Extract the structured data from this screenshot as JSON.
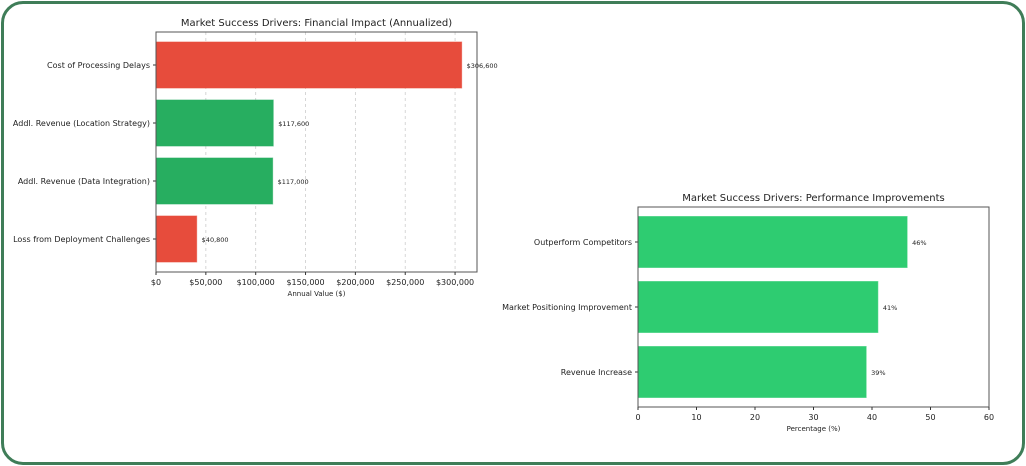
{
  "chart_data": [
    {
      "type": "bar",
      "orientation": "horizontal",
      "title": "Market Success Drivers: Financial Impact (Annualized)",
      "xlabel": "Annual Value ($)",
      "ylabel": "",
      "categories": [
        "Cost of Processing Delays",
        "Addl. Revenue (Location Strategy)",
        "Addl. Revenue (Data Integration)",
        "Loss from Deployment Challenges"
      ],
      "values": [
        306600,
        117600,
        117000,
        40800
      ],
      "data_labels": [
        "$306,600",
        "$117,600",
        "$117,000",
        "$40,800"
      ],
      "colors": [
        "#e74c3c",
        "#27ae60",
        "#27ae60",
        "#e74c3c"
      ],
      "xlim": [
        0,
        322000
      ],
      "xticks": [
        0,
        50000,
        100000,
        150000,
        200000,
        250000,
        300000
      ],
      "xtick_labels": [
        "$0",
        "$50,000",
        "$100,000",
        "$150,000",
        "$200,000",
        "$250,000",
        "$300,000"
      ],
      "grid": "x-dashed"
    },
    {
      "type": "bar",
      "orientation": "horizontal",
      "title": "Market Success Drivers: Performance Improvements",
      "xlabel": "Percentage (%)",
      "ylabel": "",
      "categories": [
        "Outperform Competitors",
        "Market Positioning Improvement",
        "Revenue Increase"
      ],
      "values": [
        46,
        41,
        39
      ],
      "data_labels": [
        "46%",
        "41%",
        "39%"
      ],
      "colors": [
        "#2ecc71",
        "#2ecc71",
        "#2ecc71"
      ],
      "xlim": [
        0,
        60
      ],
      "xticks": [
        0,
        10,
        20,
        30,
        40,
        50,
        60
      ],
      "xtick_labels": [
        "0",
        "10",
        "20",
        "30",
        "40",
        "50",
        "60"
      ],
      "grid": "none"
    }
  ]
}
